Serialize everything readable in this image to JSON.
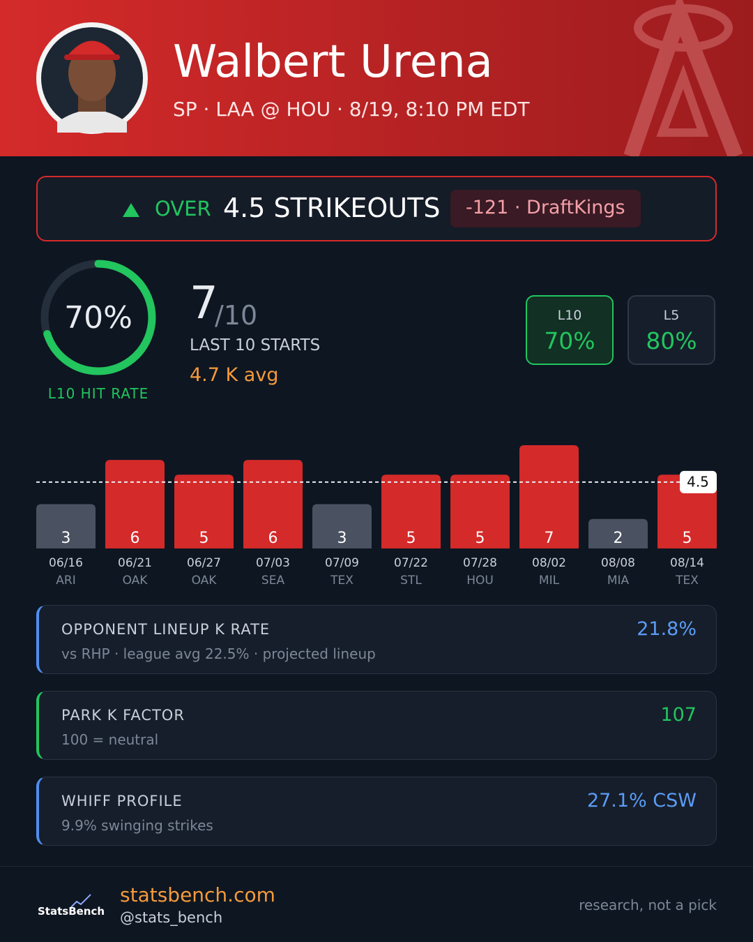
{
  "header": {
    "name": "Walbert Urena",
    "subtitle": "SP · LAA @ HOU · 8/19, 8:10 PM EDT"
  },
  "prop": {
    "direction": "OVER",
    "line": "4.5 STRIKEOUTS",
    "odds": "-121 · DraftKings"
  },
  "hit_rate": {
    "ring": {
      "value": 70,
      "label": "70%"
    },
    "ring_caption": "L10 HIT RATE",
    "hits": "7",
    "of": "/10",
    "caption": "LAST 10 STARTS",
    "avg": "4.7 K avg",
    "splits": [
      {
        "label": "L10",
        "value": "70%"
      },
      {
        "label": "L5",
        "value": "80%"
      }
    ]
  },
  "chart_data": {
    "type": "bar",
    "categories": [
      "06/16",
      "06/21",
      "06/27",
      "07/03",
      "07/09",
      "07/22",
      "07/28",
      "08/02",
      "08/08",
      "08/14"
    ],
    "opponents": [
      "ARI",
      "OAK",
      "OAK",
      "SEA",
      "TEX",
      "STL",
      "HOU",
      "MIL",
      "MIA",
      "TEX"
    ],
    "values": [
      3,
      6,
      5,
      6,
      3,
      5,
      5,
      7,
      2,
      5
    ],
    "threshold": 4.5,
    "color": "#d42a2a",
    "below_color": "#4a5261"
  },
  "cards": [
    {
      "title": "OPPONENT LINEUP K RATE",
      "subtitle": "vs RHP · league avg 22.5% · projected lineup",
      "value": "21.8%"
    },
    {
      "title": "PARK K FACTOR",
      "subtitle": "100 = neutral",
      "value": "107"
    },
    {
      "title": "WHIFF PROFILE",
      "subtitle": "9.9% swinging strikes",
      "value": "27.1% CSW"
    }
  ],
  "footer": {
    "logo": "StatsBench",
    "site": "statsbench.com",
    "handle": "@stats_bench",
    "disclaimer": "research, not a pick"
  }
}
